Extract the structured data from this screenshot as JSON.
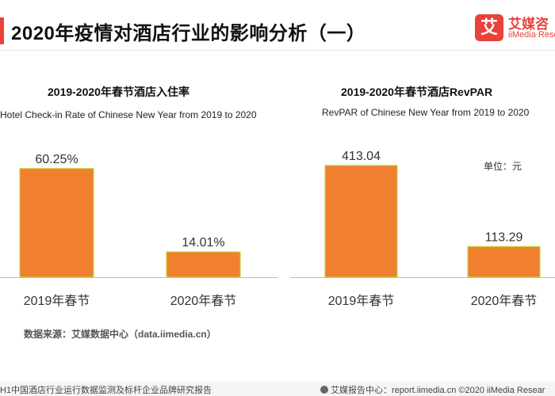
{
  "header": {
    "title": "2020年疫情对酒店行业的影响分析（一）",
    "logo_mark": "艾",
    "logo_cn": "艾媒咨",
    "logo_en": "iiMedia Rese"
  },
  "colors": {
    "bar": "#f08030",
    "bar_stroke": "#c7d33a",
    "accent": "#e8423a",
    "axis": "#bdbdbd"
  },
  "chart_data": [
    {
      "type": "bar",
      "title": "2019-2020年春节酒店入住率",
      "subtitle": "Hotel Check-in Rate of Chinese New Year  from 2019 to 2020",
      "categories": [
        "2019年春节",
        "2020年春节"
      ],
      "values": [
        60.25,
        14.01
      ],
      "value_labels": [
        "60.25%",
        "14.01%"
      ],
      "unit": "%",
      "ylim": [
        0,
        72
      ]
    },
    {
      "type": "bar",
      "title": "2019-2020年春节酒店RevPAR",
      "subtitle": "RevPAR of Chinese New Year from 2019 to 2020",
      "unit_label": "单位：元",
      "categories": [
        "2019年春节",
        "2020年春节"
      ],
      "values": [
        413.04,
        113.29
      ],
      "value_labels": [
        "413.04",
        "113.29"
      ],
      "ylim": [
        0,
        480
      ]
    }
  ],
  "source": "数据来源：艾媒数据中心（data.iimedia.cn）",
  "footer": {
    "left": "H1中国酒店行业运行数据监测及标杆企业品牌研究报告",
    "right": "艾媒报告中心：report.iimedia.cn  ©2020  iiMedia Resear"
  }
}
